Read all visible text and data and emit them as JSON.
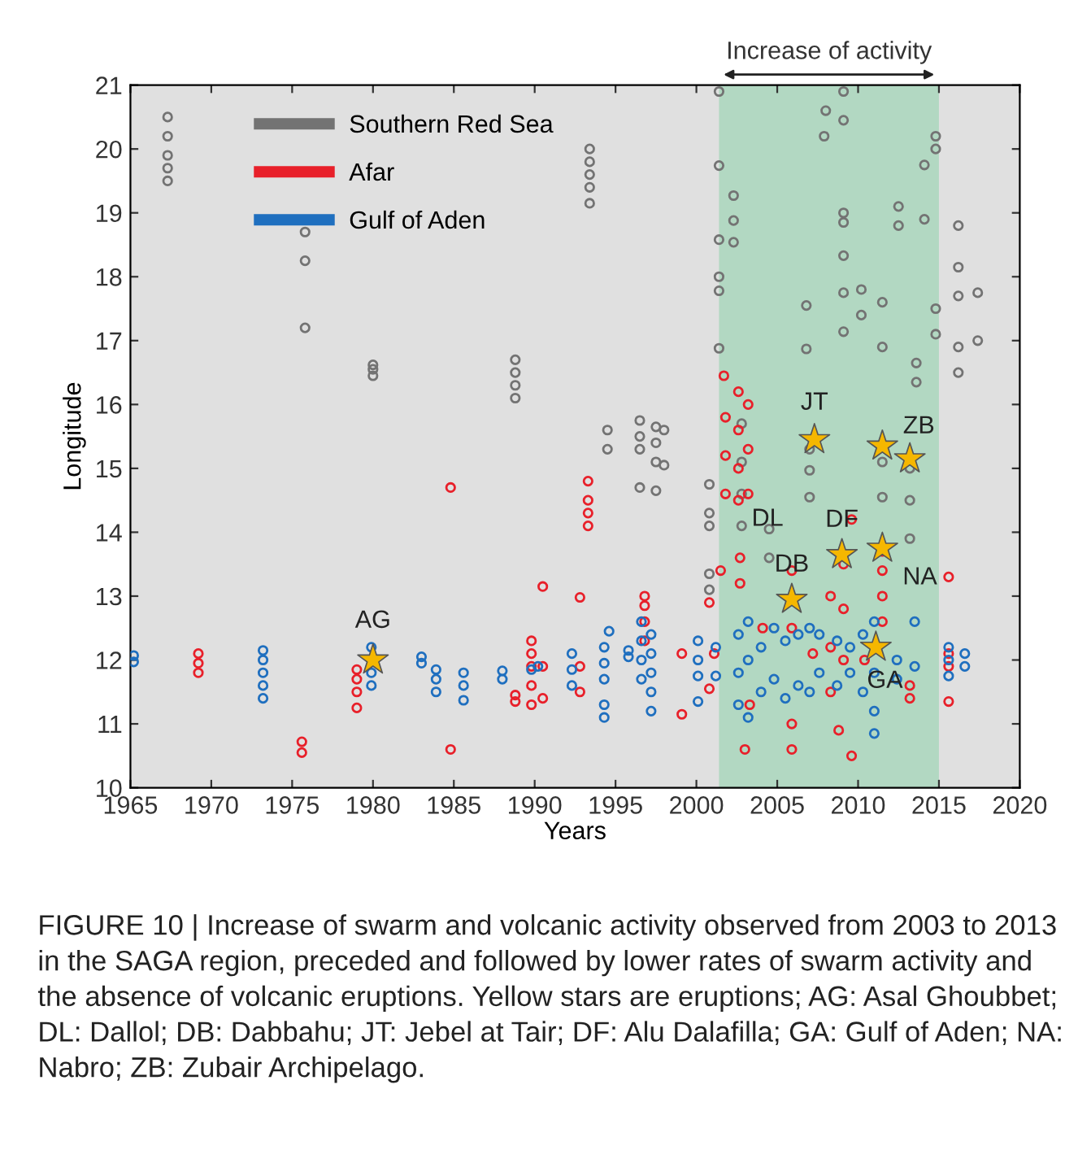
{
  "chart_data": {
    "type": "scatter",
    "xlabel": "Years",
    "ylabel": "Longitude",
    "xlim": [
      1965,
      2020
    ],
    "ylim": [
      10,
      21
    ],
    "xticks": [
      1965,
      1970,
      1975,
      1980,
      1985,
      1990,
      1995,
      2000,
      2005,
      2010,
      2015,
      2020
    ],
    "yticks": [
      10,
      11,
      12,
      13,
      14,
      15,
      16,
      17,
      18,
      19,
      20,
      21
    ],
    "grid": false,
    "legend": "top left",
    "marker": "circle",
    "bands": [
      {
        "axis": "x",
        "from": 2001.4,
        "to": 2015,
        "label": "Increase of activity",
        "color": "#b2d8c2"
      }
    ],
    "series": [
      {
        "name": "Southern Red Sea",
        "color": "#737373",
        "x": [
          1967.3,
          1967.3,
          1967.3,
          1967.3,
          1967.3,
          1975.8,
          1975.8,
          1975.8,
          1980,
          1980,
          1980,
          1988.8,
          1988.8,
          1988.8,
          1988.8,
          1993.4,
          1993.4,
          1993.4,
          1993.4,
          1993.4,
          1994.5,
          1994.5,
          1996.5,
          1996.5,
          1996.5,
          1996.5,
          1997.5,
          1997.5,
          1997.5,
          1997.5,
          1998,
          1998,
          2000.8,
          2000.8,
          2000.8,
          2000.8,
          2000.8,
          2001.4,
          2001.4,
          2001.4,
          2001.4,
          2001.4,
          2001.4,
          2002.3,
          2002.3,
          2002.3,
          2002.8,
          2002.8,
          2002.8,
          2002.8,
          2004.5,
          2004.5,
          2006.8,
          2006.8,
          2007.0,
          2007.0,
          2007.0,
          2007.9,
          2008,
          2009.1,
          2009.1,
          2009.1,
          2009.1,
          2009.1,
          2009.1,
          2009.1,
          2010.2,
          2010.2,
          2011.5,
          2011.5,
          2011.5,
          2011.5,
          2012.5,
          2012.5,
          2013.2,
          2013.2,
          2013.2,
          2013.6,
          2013.6,
          2014.1,
          2014.1,
          2014.8,
          2014.8,
          2014.8,
          2014.8,
          2016.2,
          2016.2,
          2016.2,
          2016.2,
          2016.2,
          2017.4,
          2017.4
        ],
        "values": [
          19.5,
          19.7,
          19.9,
          20.2,
          20.5,
          18.7,
          18.25,
          17.2,
          16.45,
          16.55,
          16.62,
          16.1,
          16.3,
          16.5,
          16.7,
          19.15,
          19.4,
          19.6,
          19.8,
          20.0,
          15.3,
          15.6,
          15.3,
          15.5,
          15.75,
          14.7,
          14.65,
          15.1,
          15.4,
          15.65,
          15.05,
          15.6,
          13.1,
          13.35,
          14.1,
          14.3,
          14.75,
          20.9,
          19.74,
          18.58,
          18.0,
          17.78,
          16.88,
          19.27,
          18.88,
          18.54,
          14.1,
          14.6,
          15.1,
          15.7,
          14.05,
          13.6,
          17.55,
          16.87,
          14.55,
          14.97,
          15.3,
          20.2,
          20.6,
          20.9,
          20.45,
          19.0,
          18.85,
          18.33,
          17.75,
          17.14,
          17.8,
          17.4,
          17.6,
          16.9,
          14.55,
          15.1,
          19.1,
          18.8,
          14.5,
          15.0,
          13.9,
          16.65,
          16.35,
          19.75,
          18.9,
          20.2,
          20.0,
          17.5,
          17.1,
          18.8,
          18.15,
          17.7,
          16.9,
          16.5,
          17.75,
          17.0
        ]
      },
      {
        "name": "Afar",
        "color": "#e8202a",
        "x": [
          1969.2,
          1969.2,
          1969.2,
          1975.6,
          1975.6,
          1979,
          1979,
          1979,
          1979,
          1984.8,
          1984.8,
          1988.8,
          1988.8,
          1989.8,
          1989.8,
          1989.8,
          1989.8,
          1989.8,
          1990.5,
          1990.5,
          1990.5,
          1992.8,
          1992.8,
          1992.8,
          1993.3,
          1993.3,
          1993.3,
          1993.3,
          1996.8,
          1996.8,
          1996.8,
          1996.8,
          1999.1,
          1999.1,
          2000.8,
          2000.8,
          2001.1,
          2001.5,
          2001.7,
          2001.8,
          2001.8,
          2001.8,
          2002.6,
          2002.6,
          2002.6,
          2002.6,
          2002.7,
          2002.7,
          2003.2,
          2003.2,
          2003.2,
          2003,
          2003.3,
          2004.1,
          2005.9,
          2005.9,
          2005.9,
          2005.9,
          2007.2,
          2008.3,
          2008.3,
          2008.3,
          2008.8,
          2009.1,
          2009.1,
          2009.1,
          2009.6,
          2009.6,
          2010.4,
          2011.5,
          2011.5,
          2011.5,
          2011.5,
          2013.2,
          2013.2,
          2015.6,
          2015.6,
          2015.6,
          2015.6
        ],
        "values": [
          11.8,
          11.95,
          12.1,
          10.55,
          10.72,
          11.25,
          11.5,
          11.7,
          11.85,
          14.7,
          10.6,
          11.35,
          11.45,
          11.3,
          11.6,
          11.9,
          12.1,
          12.3,
          13.15,
          11.4,
          11.9,
          12.98,
          11.5,
          11.9,
          14.1,
          14.3,
          14.5,
          14.8,
          12.3,
          12.6,
          12.85,
          13.0,
          11.15,
          12.1,
          11.55,
          12.9,
          12.1,
          13.4,
          16.45,
          14.6,
          15.2,
          15.8,
          14.5,
          15.0,
          15.6,
          16.2,
          13.6,
          13.2,
          14.6,
          15.3,
          16.0,
          10.6,
          11.3,
          12.5,
          12.5,
          13.4,
          11.0,
          10.6,
          12.1,
          11.5,
          12.2,
          13.0,
          10.9,
          12.0,
          12.8,
          13.5,
          10.5,
          14.2,
          12.0,
          12.6,
          13.0,
          13.4,
          13.7,
          11.4,
          11.6,
          11.35,
          11.9,
          12.1,
          13.3
        ]
      },
      {
        "name": "Gulf of Aden",
        "color": "#1f6fbf",
        "x": [
          1965.2,
          1965.2,
          1973.2,
          1973.2,
          1973.2,
          1973.2,
          1973.2,
          1979.9,
          1979.9,
          1979.9,
          1983,
          1983,
          1983.9,
          1983.9,
          1983.9,
          1985.6,
          1985.6,
          1985.6,
          1988,
          1988,
          1989.8,
          1990.2,
          1992.3,
          1992.3,
          1992.3,
          1994.3,
          1994.3,
          1994.3,
          1994.3,
          1994.3,
          1994.6,
          1995.8,
          1995.8,
          1996.6,
          1996.6,
          1996.6,
          1996.6,
          1997.2,
          1997.2,
          1997.2,
          1997.2,
          1997.2,
          2000.1,
          2000.1,
          2000.1,
          2000.1,
          2001.2,
          2001.2,
          2002.6,
          2002.6,
          2002.6,
          2003.2,
          2003.2,
          2003.2,
          2004,
          2004,
          2004.8,
          2004.8,
          2005.5,
          2005.5,
          2006.3,
          2006.3,
          2007,
          2007,
          2007.6,
          2007.6,
          2008.7,
          2008.7,
          2009.5,
          2009.5,
          2010.3,
          2010.3,
          2011,
          2011,
          2011,
          2011,
          2012.4,
          2012.4,
          2013.5,
          2013.5,
          2015.6,
          2015.6,
          2015.6,
          2016.6,
          2016.6
        ],
        "values": [
          11.97,
          12.07,
          11.4,
          11.6,
          11.8,
          12.0,
          12.15,
          11.6,
          11.8,
          12.2,
          11.95,
          12.05,
          11.5,
          11.7,
          11.85,
          11.37,
          11.6,
          11.8,
          11.7,
          11.83,
          11.85,
          11.9,
          11.6,
          11.85,
          12.1,
          11.1,
          11.3,
          11.7,
          11.95,
          12.2,
          12.45,
          12.05,
          12.15,
          11.7,
          12.0,
          12.3,
          12.6,
          11.2,
          11.5,
          11.8,
          12.1,
          12.4,
          11.35,
          11.75,
          12.0,
          12.3,
          11.75,
          12.2,
          11.3,
          11.8,
          12.4,
          11.1,
          12.0,
          12.6,
          11.5,
          12.2,
          11.7,
          12.5,
          11.4,
          12.3,
          11.6,
          12.4,
          11.5,
          12.5,
          11.8,
          12.4,
          11.6,
          12.3,
          11.8,
          12.2,
          11.5,
          12.4,
          10.85,
          11.2,
          11.8,
          12.6,
          11.7,
          12.0,
          12.6,
          11.9,
          11.75,
          12.0,
          12.2,
          11.9,
          12.1
        ]
      },
      {
        "color": "#f5b700",
        "marker": "star",
        "x": [
          1980,
          2005.9,
          2007.3,
          2009.0,
          2011.1,
          2011.5,
          2011.5,
          2013.2
        ],
        "values": [
          12.0,
          12.95,
          15.45,
          13.65,
          12.2,
          13.75,
          15.35,
          15.15
        ]
      }
    ],
    "annotations": [
      {
        "text": "AG",
        "x": 1980,
        "y": 12.0
      },
      {
        "text": "DL",
        "x": 2004.4,
        "y": 14.2
      },
      {
        "text": "DB",
        "x": 2005.9,
        "y": 12.95
      },
      {
        "text": "JT",
        "x": 2007.3,
        "y": 15.45
      },
      {
        "text": "DF",
        "x": 2009.0,
        "y": 13.65
      },
      {
        "text": "GA",
        "x": 2011.1,
        "y": 12.2
      },
      {
        "text": "NA",
        "x": 2011.5,
        "y": 13.75
      },
      {
        "text": "ZB",
        "x": 2013.2,
        "y": 15.15
      },
      "FIGURE 10 | Increase of swarm and volcanic activity observed from 2003 to 2013 in the SAGA region, preceded and followed by lower rates of swarm activity and the absence of volcanic eruptions. Yellow stars are eruptions; AG: Asal Ghoubbet; DL: Dallol; DB: Dabbahu; JT: Jebel at Tair; DF: Alu Dalafilla; GA: Gulf of Aden; NA: Nabro; ZB: Zubair Archipelago."
    ]
  }
}
